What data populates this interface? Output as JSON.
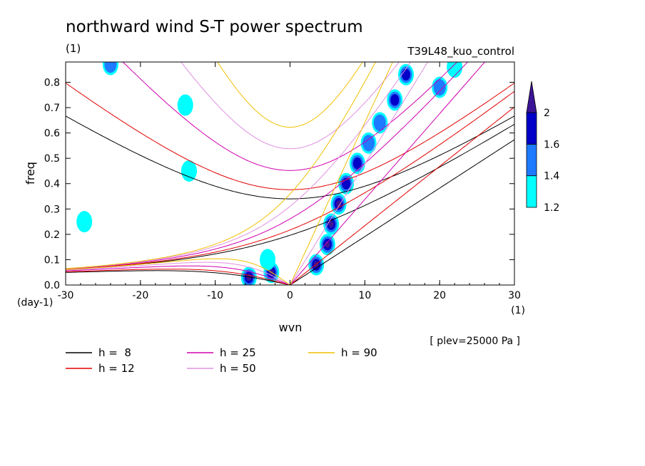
{
  "chart_data": {
    "type": "contour",
    "title": "northward wind S-T power spectrum",
    "subtitle_left": "(1)",
    "subtitle_right": "T39L48_kuo_control",
    "xlabel": "wvn",
    "ylabel": "freq",
    "x_unit_label": "(1)",
    "y_unit_label": "(day-1)",
    "xlim": [
      -30,
      30
    ],
    "ylim": [
      0,
      0.88
    ],
    "x_ticks": [
      -30,
      -20,
      -10,
      0,
      10,
      20,
      30
    ],
    "x_tick_labels": [
      "-30",
      "-20",
      "-10",
      "0",
      "10",
      "20",
      "30"
    ],
    "y_ticks": [
      0,
      0.1,
      0.2,
      0.3,
      0.4,
      0.5,
      0.6,
      0.7,
      0.8
    ],
    "y_tick_labels": [
      "0.0",
      "0.1",
      "0.2",
      "0.3",
      "0.4",
      "0.5",
      "0.6",
      "0.7",
      "0.8"
    ],
    "footnote": "[ plev=25000 Pa ]",
    "colorbar": {
      "levels": [
        1.2,
        1.4,
        1.6,
        2
      ],
      "labels": [
        "1.2",
        "1.4",
        "1.6",
        "2"
      ],
      "colors": [
        "#00ffff",
        "#1e7aff",
        "#0000c8",
        "#3c1496"
      ]
    },
    "series": [
      {
        "label": "h =  8",
        "h": 8,
        "color": "#000000"
      },
      {
        "label": "h = 12",
        "h": 12,
        "color": "#e00000"
      },
      {
        "label": "h = 25",
        "h": 25,
        "color": "#d000b0"
      },
      {
        "label": "h = 50",
        "h": 50,
        "color": "#e090e0"
      },
      {
        "label": "h = 90",
        "h": 90,
        "color": "#f0c000"
      }
    ],
    "contour_blobs": [
      {
        "x": 3.5,
        "y": 0.08,
        "level": 2
      },
      {
        "x": 5.0,
        "y": 0.16,
        "level": 2
      },
      {
        "x": 5.5,
        "y": 0.24,
        "level": 2
      },
      {
        "x": 6.5,
        "y": 0.32,
        "level": 2
      },
      {
        "x": 7.5,
        "y": 0.4,
        "level": 1.6
      },
      {
        "x": 9.0,
        "y": 0.48,
        "level": 1.6
      },
      {
        "x": 10.5,
        "y": 0.56,
        "level": 1.4
      },
      {
        "x": 12.0,
        "y": 0.64,
        "level": 1.4
      },
      {
        "x": 14.0,
        "y": 0.73,
        "level": 1.6
      },
      {
        "x": 15.5,
        "y": 0.83,
        "level": 1.6
      },
      {
        "x": -5.5,
        "y": 0.03,
        "level": 2
      },
      {
        "x": -2.5,
        "y": 0.05,
        "level": 2
      },
      {
        "x": -3.0,
        "y": 0.1,
        "level": 1.2
      },
      {
        "x": 20.0,
        "y": 0.78,
        "level": 1.4
      },
      {
        "x": 22.0,
        "y": 0.86,
        "level": 1.2
      },
      {
        "x": -24.0,
        "y": 0.87,
        "level": 1.4
      },
      {
        "x": -14.0,
        "y": 0.71,
        "level": 1.2
      },
      {
        "x": -27.5,
        "y": 0.25,
        "level": 1.2
      },
      {
        "x": -13.5,
        "y": 0.45,
        "level": 1.2
      }
    ]
  }
}
